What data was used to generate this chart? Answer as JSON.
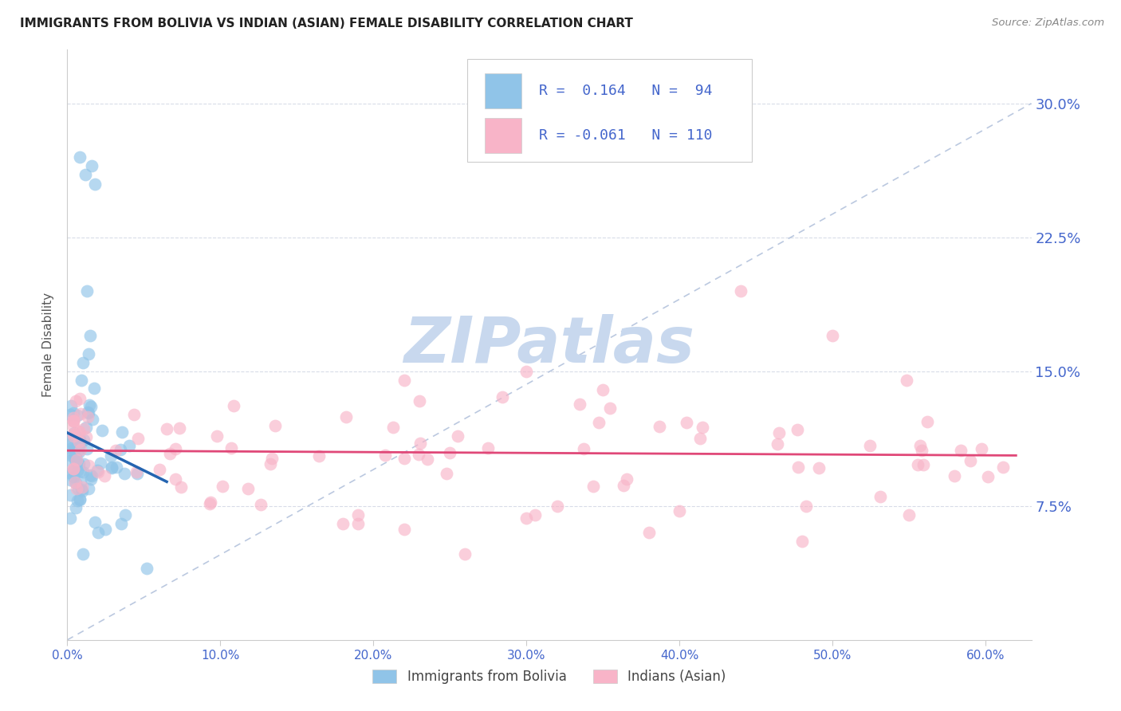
{
  "title": "IMMIGRANTS FROM BOLIVIA VS INDIAN (ASIAN) FEMALE DISABILITY CORRELATION CHART",
  "source": "Source: ZipAtlas.com",
  "ylabel": "Female Disability",
  "ylim": [
    0.0,
    0.33
  ],
  "xlim": [
    0.0,
    0.63
  ],
  "yticks": [
    0.075,
    0.15,
    0.225,
    0.3
  ],
  "ytick_labels": [
    "7.5%",
    "15.0%",
    "22.5%",
    "30.0%"
  ],
  "xticks": [
    0.0,
    0.1,
    0.2,
    0.3,
    0.4,
    0.5,
    0.6
  ],
  "xtick_labels": [
    "0.0%",
    "10.0%",
    "20.0%",
    "30.0%",
    "40.0%",
    "50.0%",
    "60.0%"
  ],
  "legend1_r": "0.164",
  "legend1_n": "94",
  "legend2_r": "-0.061",
  "legend2_n": "110",
  "blue_color": "#90c4e8",
  "pink_color": "#f8b4c8",
  "blue_line_color": "#2464b0",
  "pink_line_color": "#e04878",
  "diag_line_color": "#aabbd8",
  "gridline_color": "#d8dce8",
  "watermark_color": "#c8d8ee",
  "tick_label_color": "#4466cc",
  "ylabel_color": "#555555",
  "title_color": "#222222",
  "source_color": "#888888"
}
